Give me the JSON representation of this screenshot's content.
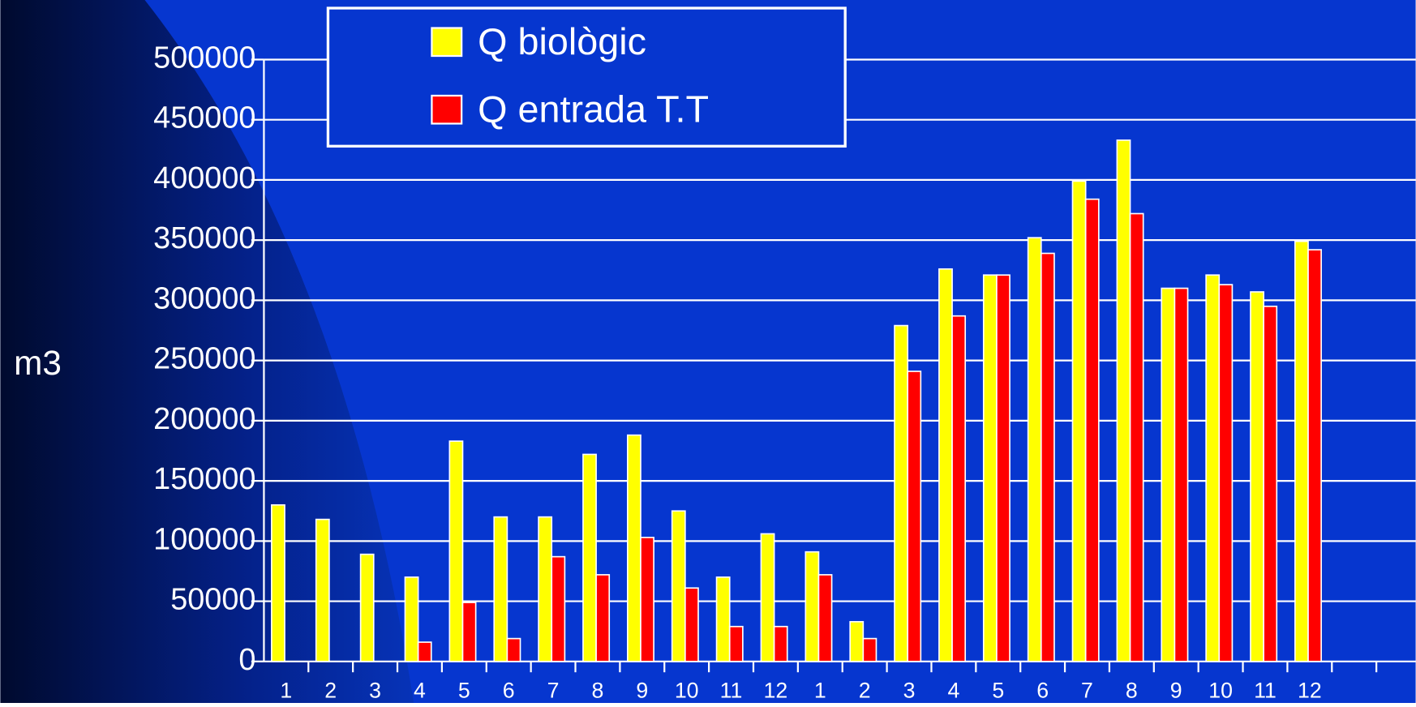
{
  "chart_data": {
    "type": "bar",
    "axis_label": "m3",
    "categories": [
      "1",
      "2",
      "3",
      "4",
      "5",
      "6",
      "7",
      "8",
      "9",
      "10",
      "11",
      "12",
      "1",
      "2",
      "3",
      "4",
      "5",
      "6",
      "7",
      "8",
      "9",
      "10",
      "11",
      "12",
      null,
      null
    ],
    "series": [
      {
        "name": "Q biològic",
        "color": "#ffff00",
        "values": [
          130000,
          118000,
          89000,
          70000,
          183000,
          120000,
          120000,
          172000,
          188000,
          125000,
          70000,
          106000,
          91000,
          33000,
          279000,
          326000,
          321000,
          352000,
          399000,
          433000,
          310000,
          321000,
          307000,
          349000,
          null,
          null
        ]
      },
      {
        "name": "Q entrada T.T",
        "color": "#ff0000",
        "values": [
          null,
          null,
          null,
          16000,
          49000,
          19000,
          87000,
          72000,
          103000,
          61000,
          29000,
          29000,
          72000,
          19000,
          241000,
          287000,
          321000,
          339000,
          384000,
          372000,
          310000,
          313000,
          295000,
          342000,
          null,
          null
        ]
      }
    ],
    "ylim": [
      0,
      500000
    ],
    "yticks": [
      0,
      50000,
      100000,
      150000,
      200000,
      250000,
      300000,
      350000,
      400000,
      450000,
      500000
    ],
    "grid": true
  }
}
